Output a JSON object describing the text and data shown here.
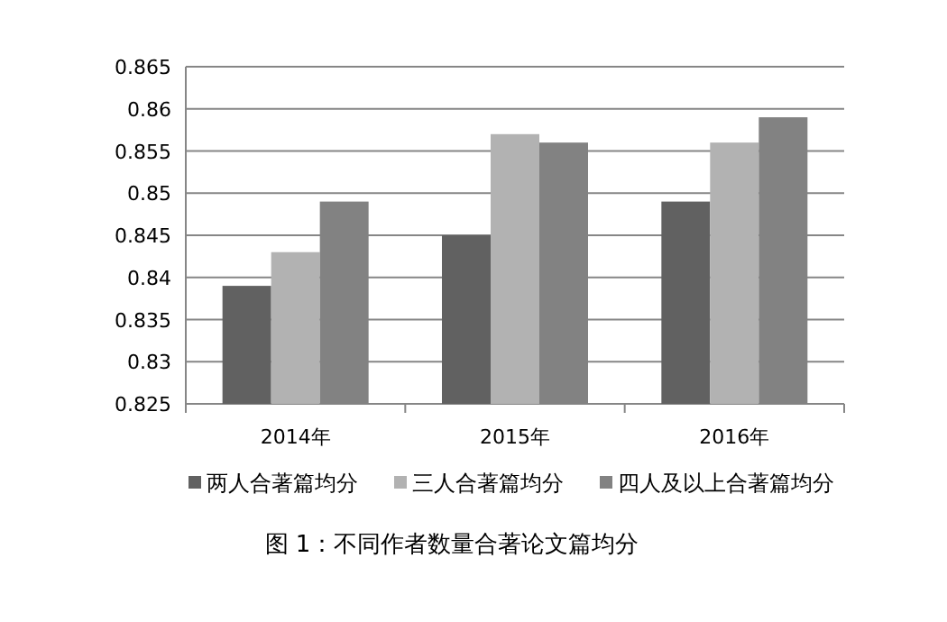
{
  "chart_data": {
    "type": "bar",
    "categories": [
      "2014年",
      "2015年",
      "2016年"
    ],
    "series": [
      {
        "name": "两人合著篇均分",
        "color": "#616161",
        "values": [
          0.839,
          0.845,
          0.849
        ]
      },
      {
        "name": "三人合著篇均分",
        "color": "#b2b2b2",
        "values": [
          0.843,
          0.857,
          0.856
        ]
      },
      {
        "name": "四人及以上合著篇均分",
        "color": "#828282",
        "values": [
          0.849,
          0.856,
          0.859
        ]
      }
    ],
    "ylim": [
      0.825,
      0.865
    ],
    "yticks": [
      0.825,
      0.83,
      0.835,
      0.84,
      0.845,
      0.85,
      0.855,
      0.86,
      0.865
    ],
    "grid": "y",
    "legend": "bottom",
    "annotations": [
      "图 1：不同作者数量合著论文篇均分"
    ]
  }
}
